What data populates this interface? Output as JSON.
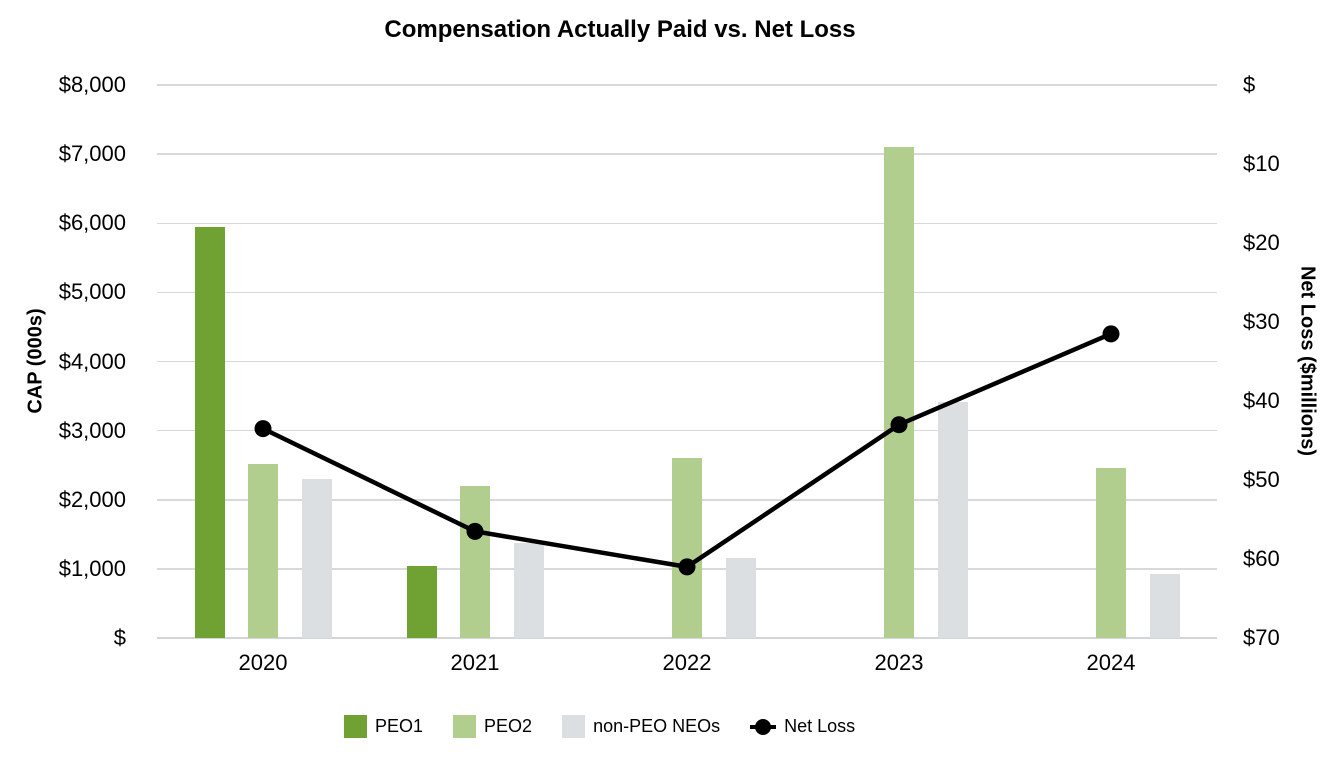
{
  "title": "Compensation Actually Paid vs. Net Loss",
  "chart_data": {
    "type": "bar",
    "subtype": "grouped-bar-with-line-combo",
    "title": "Compensation Actually Paid vs. Net Loss",
    "categories": [
      "2020",
      "2021",
      "2022",
      "2023",
      "2024"
    ],
    "series": [
      {
        "name": "PEO1",
        "type": "bar",
        "axis": "left",
        "color": "#6FA232",
        "values": [
          5950,
          1040,
          null,
          null,
          null
        ]
      },
      {
        "name": "PEO2",
        "type": "bar",
        "axis": "left",
        "color": "#B2CE8E",
        "values": [
          2520,
          2200,
          2600,
          7100,
          2460
        ]
      },
      {
        "name": "non-PEO NEOs",
        "type": "bar",
        "axis": "left",
        "color": "#DBDFE2",
        "values": [
          2300,
          1370,
          1160,
          3410,
          930
        ]
      },
      {
        "name": "Net Loss",
        "type": "line",
        "axis": "right",
        "color": "#000000",
        "values": [
          43.5,
          56.5,
          61,
          43,
          31.5
        ]
      }
    ],
    "left_axis": {
      "title": "CAP (000s)",
      "min": 0,
      "max": 8000,
      "tick_step": 1000,
      "tick_labels": [
        "$8,000",
        "$7,000",
        "$6,000",
        "$5,000",
        "$4,000",
        "$3,000",
        "$2,000",
        "$1,000",
        "$"
      ]
    },
    "right_axis": {
      "title": "Net Loss ($millions)",
      "min": 0,
      "max": 70,
      "tick_step": 10,
      "inverted": true,
      "tick_labels": [
        "$",
        "$10",
        "$20",
        "$30",
        "$40",
        "$50",
        "$60",
        "$70"
      ]
    },
    "grid": "horizontal-only",
    "gridline_color": "#d9d9d9",
    "legend_position": "bottom",
    "background": "#ffffff",
    "text_color": "#000000"
  }
}
